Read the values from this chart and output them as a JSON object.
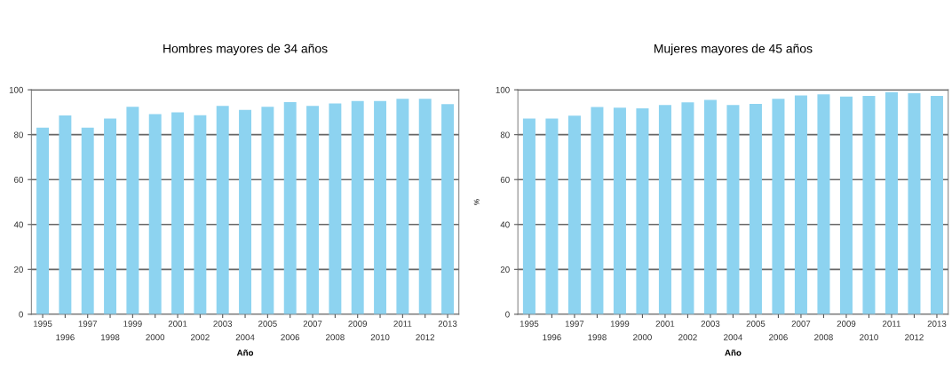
{
  "chart_data": [
    {
      "type": "bar",
      "title": "Hombres mayores de 34 años",
      "xlabel": "Año",
      "categories": [
        "1995",
        "1996",
        "1997",
        "1998",
        "1999",
        "2000",
        "2001",
        "2002",
        "2003",
        "2004",
        "2005",
        "2006",
        "2007",
        "2008",
        "2009",
        "2010",
        "2011",
        "2012",
        "2013"
      ],
      "values": [
        83.1,
        88.6,
        83.1,
        87.2,
        92.4,
        89.2,
        90.0,
        88.7,
        92.8,
        91.0,
        92.4,
        94.5,
        92.8,
        93.9,
        95.0,
        95.0,
        96.0,
        96.0,
        93.6
      ],
      "color": "#8dd3f0",
      "ylim": [
        0,
        100
      ],
      "yticks": [
        0,
        20,
        40,
        60,
        80,
        100
      ],
      "grid": "y"
    },
    {
      "type": "bar",
      "title": "Mujeres mayores de 45 años",
      "xlabel": "Año",
      "ylabel": "%",
      "categories": [
        "1995",
        "1996",
        "1997",
        "1998",
        "1999",
        "2000",
        "2001",
        "2002",
        "2003",
        "2004",
        "2005",
        "2006",
        "2007",
        "2008",
        "2009",
        "2010",
        "2011",
        "2012",
        "2013"
      ],
      "values": [
        87.2,
        87.2,
        88.5,
        92.3,
        92.0,
        91.7,
        93.2,
        94.4,
        95.5,
        93.2,
        93.7,
        96.0,
        97.5,
        98.0,
        97.0,
        97.3,
        99.0,
        98.5,
        97.3
      ],
      "color": "#8dd3f0",
      "ylim": [
        0,
        100
      ],
      "yticks": [
        0,
        20,
        40,
        60,
        80,
        100
      ],
      "grid": "y"
    }
  ]
}
